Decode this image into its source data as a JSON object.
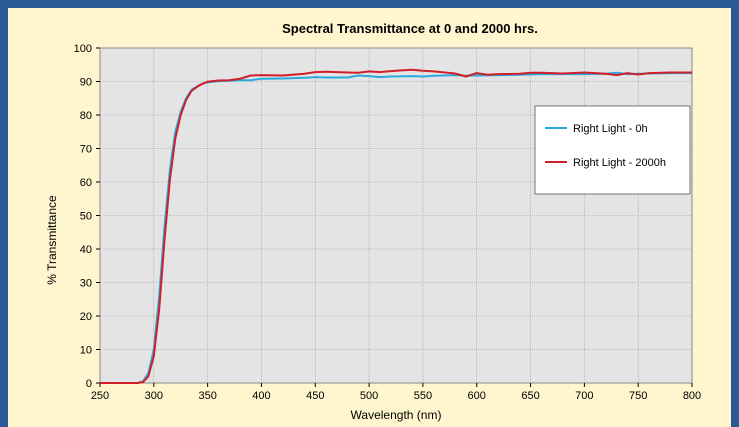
{
  "chart_data": {
    "type": "line",
    "title": "Spectral Transmittance at 0 and 2000 hrs.",
    "xlabel": "Wavelength (nm)",
    "ylabel": "% Transmittance",
    "xlim": [
      250,
      800
    ],
    "ylim": [
      0,
      100
    ],
    "x_ticks": [
      250,
      300,
      350,
      400,
      450,
      500,
      550,
      600,
      650,
      700,
      750,
      800
    ],
    "y_ticks": [
      0,
      10,
      20,
      30,
      40,
      50,
      60,
      70,
      80,
      90,
      100
    ],
    "grid": true,
    "legend_position": "top-right",
    "series": [
      {
        "name": "Right Light - 0h",
        "color": "#29a9e0",
        "x": [
          250,
          285,
          290,
          295,
          300,
          305,
          310,
          315,
          320,
          325,
          330,
          335,
          340,
          345,
          350,
          360,
          370,
          380,
          390,
          400,
          420,
          440,
          450,
          460,
          480,
          490,
          500,
          510,
          520,
          540,
          550,
          560,
          580,
          590,
          600,
          620,
          640,
          650,
          660,
          680,
          700,
          720,
          730,
          740,
          750,
          760,
          780,
          800
        ],
        "y": [
          0,
          0,
          0.5,
          3,
          10,
          26,
          47,
          64,
          75,
          81,
          85,
          87.5,
          88.5,
          89.3,
          89.8,
          90.1,
          90.2,
          90.4,
          90.4,
          90.8,
          90.9,
          91.1,
          91.3,
          91.2,
          91.2,
          91.8,
          91.6,
          91.3,
          91.5,
          91.6,
          91.5,
          91.7,
          91.9,
          91.7,
          91.8,
          91.9,
          92.0,
          92.1,
          92.2,
          92.2,
          92.2,
          92.3,
          92.6,
          92.2,
          92.3,
          92.4,
          92.5,
          92.5
        ]
      },
      {
        "name": "Right Light - 2000h",
        "color": "#d11f2a",
        "x": [
          250,
          285,
          290,
          295,
          300,
          305,
          310,
          315,
          320,
          325,
          330,
          335,
          340,
          345,
          350,
          360,
          370,
          380,
          390,
          400,
          420,
          440,
          450,
          460,
          480,
          490,
          500,
          510,
          520,
          530,
          540,
          550,
          560,
          580,
          590,
          600,
          610,
          620,
          640,
          650,
          660,
          680,
          700,
          720,
          730,
          740,
          750,
          760,
          780,
          800
        ],
        "y": [
          0,
          0,
          0.3,
          2,
          8,
          22,
          43,
          61,
          73,
          80,
          84.5,
          87.2,
          88.4,
          89.3,
          89.9,
          90.3,
          90.4,
          90.8,
          91.8,
          91.9,
          91.8,
          92.3,
          92.8,
          92.9,
          92.7,
          92.6,
          93.0,
          92.8,
          93.1,
          93.3,
          93.5,
          93.2,
          93.0,
          92.4,
          91.5,
          92.5,
          92.0,
          92.2,
          92.3,
          92.6,
          92.6,
          92.4,
          92.7,
          92.3,
          91.9,
          92.5,
          92.1,
          92.5,
          92.7,
          92.7
        ]
      }
    ]
  }
}
